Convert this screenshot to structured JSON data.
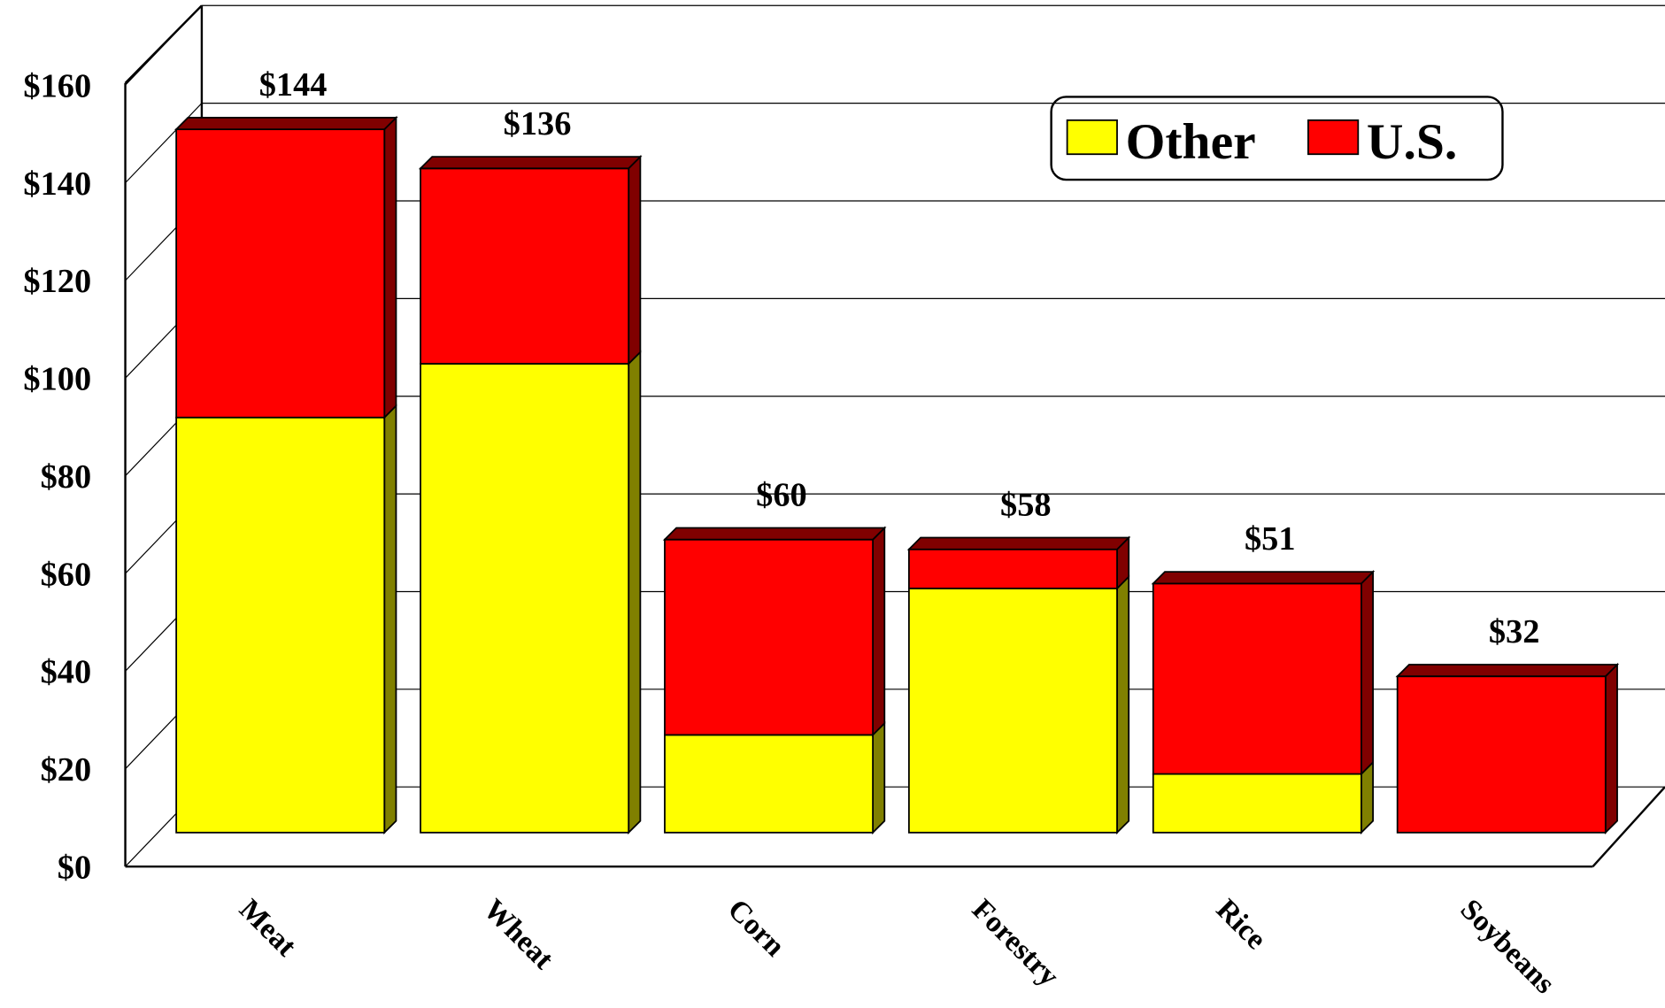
{
  "chart_data": {
    "type": "stacked-bar-3d",
    "categories": [
      "Meat",
      "Wheat",
      "Corn",
      "Forestry",
      "Rice",
      "Soybeans"
    ],
    "series": [
      {
        "name": "Other",
        "color": "#ffff00",
        "side_color": "#808000",
        "values": [
          85,
          96,
          20,
          50,
          12,
          0
        ]
      },
      {
        "name": "U.S.",
        "color": "#ff0000",
        "side_color": "#800000",
        "values": [
          59,
          40,
          40,
          8,
          39,
          32
        ]
      }
    ],
    "totals": [
      144,
      136,
      60,
      58,
      51,
      32
    ],
    "total_labels": [
      "$144",
      "$136",
      "$60",
      "$58",
      "$51",
      "$32"
    ],
    "ylim": [
      0,
      160
    ],
    "yticks": [
      {
        "value": 0,
        "label": "$0"
      },
      {
        "value": 20,
        "label": "$20"
      },
      {
        "value": 40,
        "label": "$40"
      },
      {
        "value": 60,
        "label": "$60"
      },
      {
        "value": 80,
        "label": "$80"
      },
      {
        "value": 100,
        "label": "$100"
      },
      {
        "value": 120,
        "label": "$120"
      },
      {
        "value": 140,
        "label": "$140"
      },
      {
        "value": 160,
        "label": "$160"
      }
    ],
    "grid": true
  }
}
